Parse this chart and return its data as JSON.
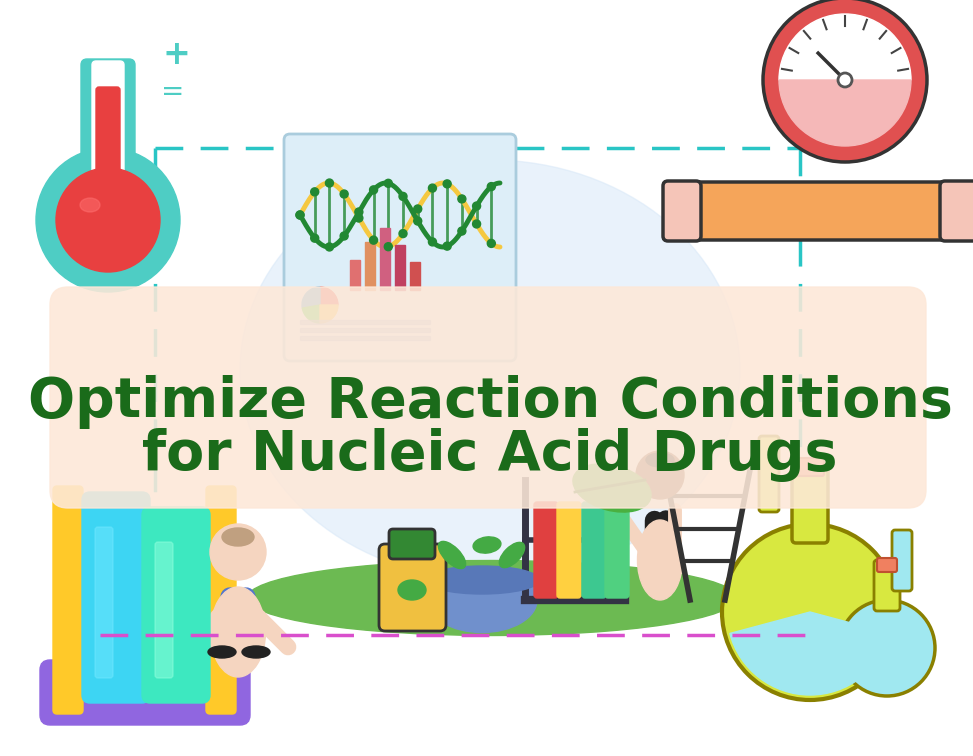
{
  "title_line1": "Optimize Reaction Conditions",
  "title_line2": "for Nucleic Acid Drugs",
  "title_color": "#1a6b1a",
  "title_fontsize": 40,
  "bg_color": "#ffffff",
  "banner_color": "#fde8d8",
  "banner_alpha": 0.88,
  "dashed_cyan": "#29c5c5",
  "dashed_magenta": "#d94fcc",
  "therm_teal": "#4ecdc4",
  "therm_red": "#e84040",
  "gauge_red": "#e05050",
  "gauge_pink": "#f5b8b8",
  "pipe_orange": "#f5a55a",
  "pipe_pink": "#f5c5b8",
  "rack_yellow": "#ffc929",
  "rack_purple": "#9066e0",
  "tube_blue": "#3dd5f3",
  "tube_teal": "#3de8c0",
  "flask_yellow": "#d8e840",
  "flask_cyan": "#a0e8f0",
  "flask_outline": "#8a8000",
  "flask_stopper": "#f08060",
  "ground_green": "#6cba52",
  "board_bg": "#ddeef8",
  "mortar_blue": "#7090cc",
  "fig_width": 9.73,
  "fig_height": 7.56
}
